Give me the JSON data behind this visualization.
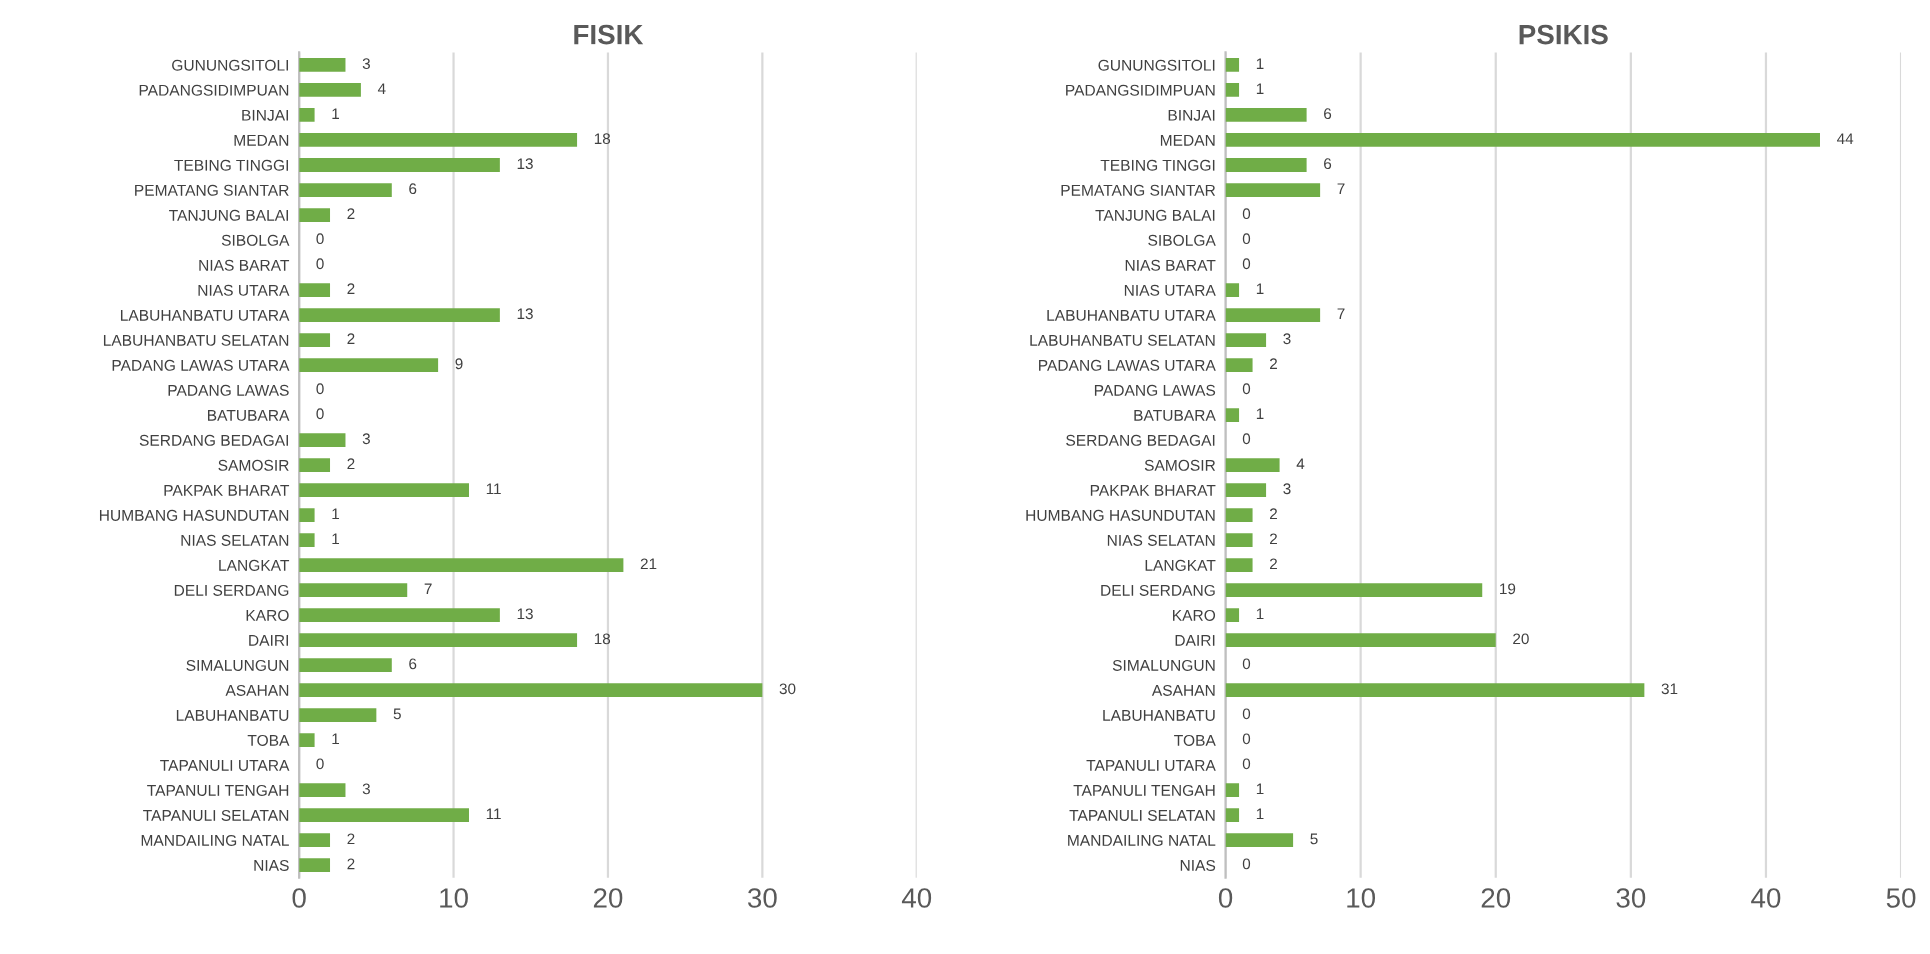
{
  "chart_data": [
    {
      "type": "bar",
      "orientation": "horizontal",
      "title": "FISIK",
      "categories": [
        "GUNUNGSITOLI",
        "PADANGSIDIMPUAN",
        "BINJAI",
        "MEDAN",
        "TEBING TINGGI",
        "PEMATANG SIANTAR",
        "TANJUNG BALAI",
        "SIBOLGA",
        "NIAS BARAT",
        "NIAS UTARA",
        "LABUHANBATU UTARA",
        "LABUHANBATU SELATAN",
        "PADANG LAWAS UTARA",
        "PADANG LAWAS",
        "BATUBARA",
        "SERDANG BEDAGAI",
        "SAMOSIR",
        "PAKPAK BHARAT",
        "HUMBANG HASUNDUTAN",
        "NIAS SELATAN",
        "LANGKAT",
        "DELI SERDANG",
        "KARO",
        "DAIRI",
        "SIMALUNGUN",
        "ASAHAN",
        "LABUHANBATU",
        "TOBA",
        "TAPANULI UTARA",
        "TAPANULI TENGAH",
        "TAPANULI SELATAN",
        "MANDAILING NATAL",
        "NIAS"
      ],
      "values": [
        3,
        4,
        1,
        18,
        13,
        6,
        2,
        0,
        0,
        2,
        13,
        2,
        9,
        0,
        0,
        3,
        2,
        11,
        1,
        1,
        21,
        7,
        13,
        18,
        6,
        30,
        5,
        1,
        0,
        3,
        11,
        2,
        2
      ],
      "color": "#70ad47",
      "xlim": [
        0,
        40
      ],
      "xticks": [
        0,
        10,
        20,
        30,
        40
      ],
      "grid": "x",
      "data_labels": true
    },
    {
      "type": "bar",
      "orientation": "horizontal",
      "title": "PSIKIS",
      "categories": [
        "GUNUNGSITOLI",
        "PADANGSIDIMPUAN",
        "BINJAI",
        "MEDAN",
        "TEBING TINGGI",
        "PEMATANG SIANTAR",
        "TANJUNG BALAI",
        "SIBOLGA",
        "NIAS BARAT",
        "NIAS UTARA",
        "LABUHANBATU UTARA",
        "LABUHANBATU SELATAN",
        "PADANG LAWAS UTARA",
        "PADANG LAWAS",
        "BATUBARA",
        "SERDANG BEDAGAI",
        "SAMOSIR",
        "PAKPAK BHARAT",
        "HUMBANG HASUNDUTAN",
        "NIAS SELATAN",
        "LANGKAT",
        "DELI SERDANG",
        "KARO",
        "DAIRI",
        "SIMALUNGUN",
        "ASAHAN",
        "LABUHANBATU",
        "TOBA",
        "TAPANULI UTARA",
        "TAPANULI TENGAH",
        "TAPANULI SELATAN",
        "MANDAILING NATAL",
        "NIAS"
      ],
      "values": [
        1,
        1,
        6,
        44,
        6,
        7,
        0,
        0,
        0,
        1,
        7,
        3,
        2,
        0,
        1,
        0,
        4,
        3,
        2,
        2,
        2,
        19,
        1,
        20,
        0,
        31,
        0,
        0,
        0,
        1,
        1,
        5,
        0
      ],
      "color": "#70ad47",
      "xlim": [
        0,
        50
      ],
      "xticks": [
        0,
        10,
        20,
        30,
        40,
        50
      ],
      "grid": "x",
      "data_labels": true
    }
  ]
}
